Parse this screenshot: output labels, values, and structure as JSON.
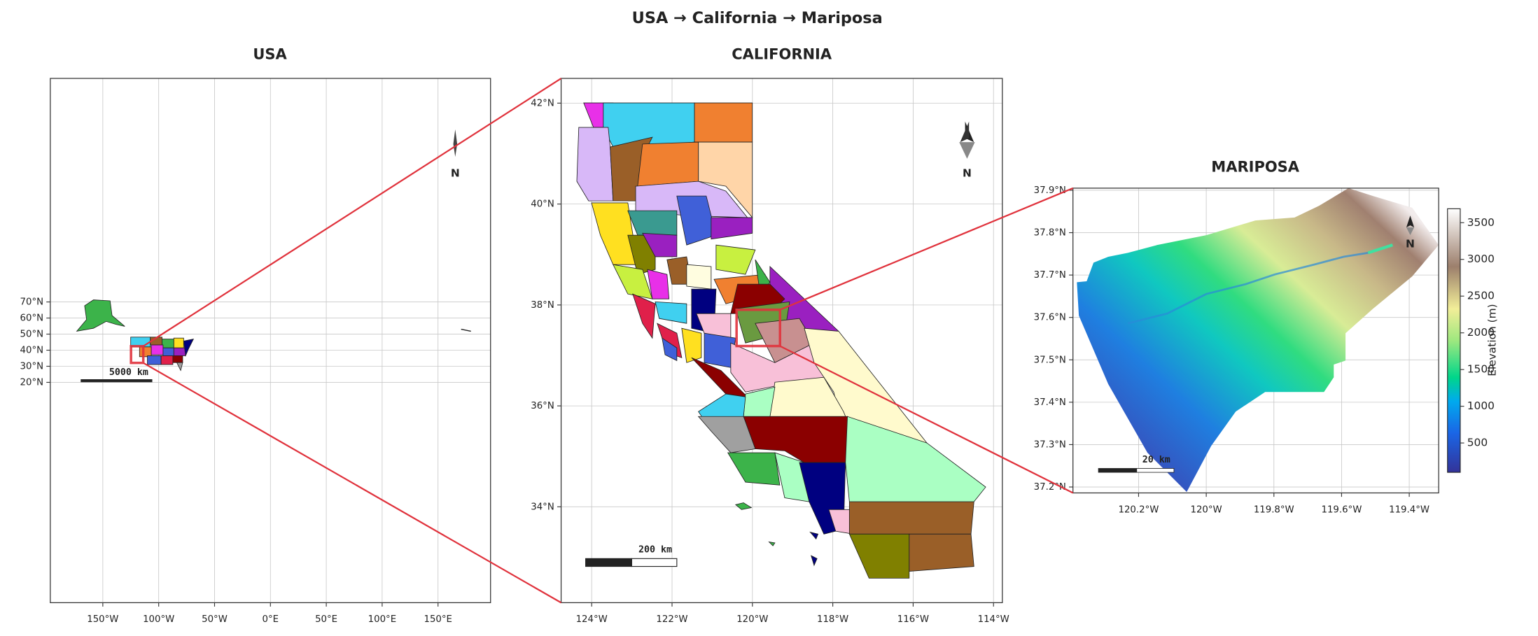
{
  "title": "USA  →  California  →  Mariposa",
  "panels": [
    {
      "title": "USA",
      "xlim": [
        -197,
        197
      ],
      "ylim": [
        -117,
        209
      ],
      "xticks": [
        {
          "value": -150,
          "label": "150°W"
        },
        {
          "value": -100,
          "label": "100°W"
        },
        {
          "value": -50,
          "label": "50°W"
        },
        {
          "value": 0,
          "label": "0°E"
        },
        {
          "value": 50,
          "label": "50°E"
        },
        {
          "value": 100,
          "label": "100°E"
        },
        {
          "value": 150,
          "label": "150°E"
        }
      ],
      "yticks": [
        {
          "value": 20,
          "label": "20°N"
        },
        {
          "value": 30,
          "label": "30°N"
        },
        {
          "value": 40,
          "label": "40°N"
        },
        {
          "value": 50,
          "label": "50°N"
        },
        {
          "value": 60,
          "label": "60°N"
        },
        {
          "value": 70,
          "label": "70°N"
        }
      ],
      "north": "N",
      "scale_bar": "5000 km"
    },
    {
      "title": "CALIFORNIA",
      "xlim": [
        -124.76,
        -113.78
      ],
      "ylim": [
        32.1,
        42.49
      ],
      "xticks": [
        {
          "value": -124,
          "label": "124°W"
        },
        {
          "value": -122,
          "label": "122°W"
        },
        {
          "value": -120,
          "label": "120°W"
        },
        {
          "value": -118,
          "label": "118°W"
        },
        {
          "value": -116,
          "label": "116°W"
        },
        {
          "value": -114,
          "label": "114°W"
        }
      ],
      "yticks": [
        {
          "value": 34,
          "label": "34°N"
        },
        {
          "value": 36,
          "label": "36°N"
        },
        {
          "value": 38,
          "label": "38°N"
        },
        {
          "value": 40,
          "label": "40°N"
        },
        {
          "value": 42,
          "label": "42°N"
        }
      ],
      "north": "N",
      "scale_bar": "200 km"
    },
    {
      "title": "MARIPOSA",
      "xlim": [
        -120.394,
        -119.313
      ],
      "ylim": [
        37.186,
        37.905
      ],
      "xticks": [
        {
          "value": -120.2,
          "label": "120.2°W"
        },
        {
          "value": -120,
          "label": "120°W"
        },
        {
          "value": -119.8,
          "label": "119.8°W"
        },
        {
          "value": -119.6,
          "label": "119.6°W"
        },
        {
          "value": -119.4,
          "label": "119.4°W"
        }
      ],
      "yticks": [
        {
          "value": 37.2,
          "label": "37.2°N"
        },
        {
          "value": 37.3,
          "label": "37.3°N"
        },
        {
          "value": 37.4,
          "label": "37.4°N"
        },
        {
          "value": 37.5,
          "label": "37.5°N"
        },
        {
          "value": 37.6,
          "label": "37.6°N"
        },
        {
          "value": 37.7,
          "label": "37.7°N"
        },
        {
          "value": 37.8,
          "label": "37.8°N"
        },
        {
          "value": 37.9,
          "label": "37.9°N"
        }
      ],
      "north": "N",
      "scale_bar": "20 km"
    }
  ],
  "colorbar": {
    "label": "Elevation (m)",
    "lim": [
      100,
      3690
    ],
    "ticks": [
      500,
      1000,
      1500,
      2000,
      2500,
      3000,
      3500
    ]
  }
}
